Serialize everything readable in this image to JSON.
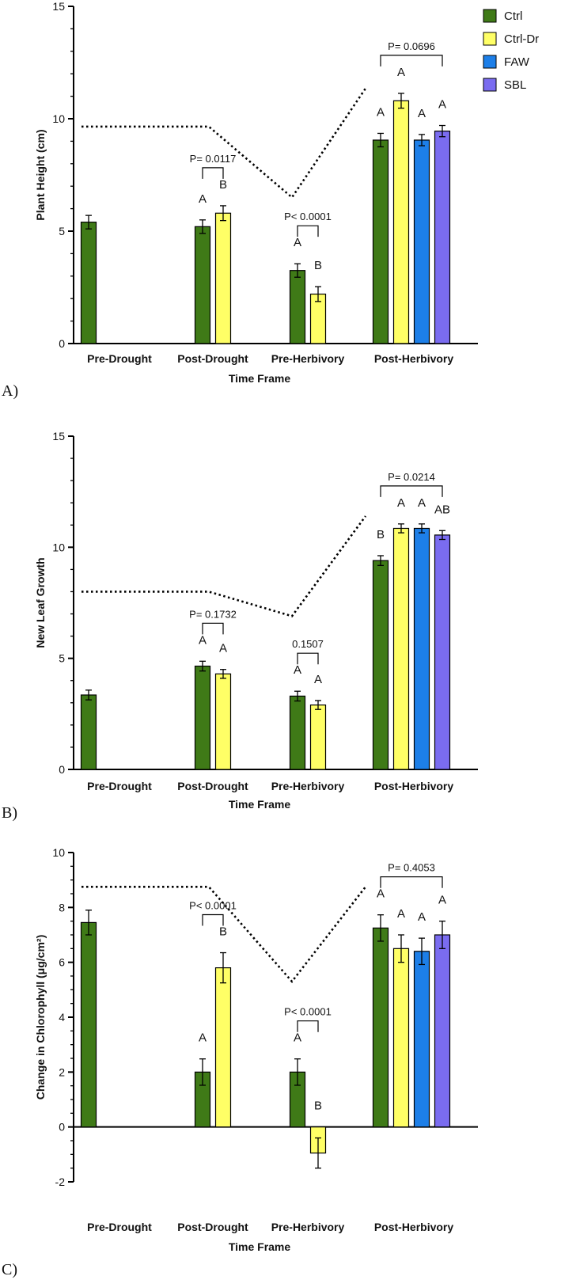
{
  "legend": [
    {
      "name": "Ctrl",
      "color": "#3f7a17"
    },
    {
      "name": "Ctrl-Dr",
      "color": "#ffff66"
    },
    {
      "name": "FAW",
      "color": "#1d7fe8"
    },
    {
      "name": "SBL",
      "color": "#7a6cf0"
    }
  ],
  "chart_data": [
    {
      "type": "bar",
      "panel_label": "A)",
      "ylabel": "Plant Height (cm)",
      "xlabel": "Time Frame",
      "ylim": [
        0,
        15
      ],
      "yticks": [
        0,
        5,
        10,
        15
      ],
      "categories": [
        "Pre-Drought",
        "Post-Drought",
        "Pre-Herbivory",
        "Post-Herbivory"
      ],
      "groups": [
        {
          "bars": [
            {
              "series": "Ctrl",
              "value": 5.4,
              "err": 0.3,
              "letter": ""
            }
          ]
        },
        {
          "bars": [
            {
              "series": "Ctrl",
              "value": 5.2,
              "err": 0.3,
              "letter": "A"
            },
            {
              "series": "Ctrl-Dr",
              "value": 5.8,
              "err": 0.33,
              "letter": "B"
            }
          ],
          "pvalue": "P= 0.0117"
        },
        {
          "bars": [
            {
              "series": "Ctrl",
              "value": 3.25,
              "err": 0.3,
              "letter": "A"
            },
            {
              "series": "Ctrl-Dr",
              "value": 2.2,
              "err": 0.33,
              "letter": "B"
            }
          ],
          "pvalue": "P< 0.0001"
        },
        {
          "bars": [
            {
              "series": "Ctrl",
              "value": 9.05,
              "err": 0.3,
              "letter": "A"
            },
            {
              "series": "Ctrl-Dr",
              "value": 10.8,
              "err": 0.33,
              "letter": "A"
            },
            {
              "series": "FAW",
              "value": 9.05,
              "err": 0.25,
              "letter": "A"
            },
            {
              "series": "SBL",
              "value": 9.45,
              "err": 0.25,
              "letter": "A"
            }
          ],
          "pvalue": "P= 0.0696"
        }
      ],
      "trend_line": [
        9.65,
        9.65,
        6.5,
        11.35
      ]
    },
    {
      "type": "bar",
      "panel_label": "B)",
      "ylabel": "New Leaf Growth",
      "xlabel": "Time Frame",
      "ylim": [
        0,
        15
      ],
      "yticks": [
        0,
        5,
        10,
        15
      ],
      "categories": [
        "Pre-Drought",
        "Post-Drought",
        "Pre-Herbivory",
        "Post-Herbivory"
      ],
      "groups": [
        {
          "bars": [
            {
              "series": "Ctrl",
              "value": 3.35,
              "err": 0.22,
              "letter": ""
            }
          ]
        },
        {
          "bars": [
            {
              "series": "Ctrl",
              "value": 4.65,
              "err": 0.22,
              "letter": "A"
            },
            {
              "series": "Ctrl-Dr",
              "value": 4.3,
              "err": 0.2,
              "letter": "A"
            }
          ],
          "pvalue": "P= 0.1732"
        },
        {
          "bars": [
            {
              "series": "Ctrl",
              "value": 3.3,
              "err": 0.22,
              "letter": "A"
            },
            {
              "series": "Ctrl-Dr",
              "value": 2.9,
              "err": 0.2,
              "letter": "A"
            }
          ],
          "pvalue": "0.1507"
        },
        {
          "bars": [
            {
              "series": "Ctrl",
              "value": 9.4,
              "err": 0.22,
              "letter": "B"
            },
            {
              "series": "Ctrl-Dr",
              "value": 10.85,
              "err": 0.2,
              "letter": "A"
            },
            {
              "series": "FAW",
              "value": 10.85,
              "err": 0.2,
              "letter": "A"
            },
            {
              "series": "SBL",
              "value": 10.55,
              "err": 0.2,
              "letter": "AB"
            }
          ],
          "pvalue": "P= 0.0214"
        }
      ],
      "trend_line": [
        8.0,
        8.0,
        6.9,
        11.4
      ]
    },
    {
      "type": "bar",
      "panel_label": "C)",
      "ylabel": "Change in Chlorophyll  (μg/cm²)",
      "xlabel": "Time Frame",
      "ylim": [
        -2,
        10
      ],
      "yticks": [
        -2,
        0,
        2,
        4,
        6,
        8,
        10
      ],
      "categories": [
        "Pre-Drought",
        "Post-Drought",
        "Pre-Herbivory",
        "Post-Herbivory"
      ],
      "groups": [
        {
          "bars": [
            {
              "series": "Ctrl",
              "value": 7.45,
              "err": 0.45,
              "letter": ""
            }
          ]
        },
        {
          "bars": [
            {
              "series": "Ctrl",
              "value": 2.0,
              "err": 0.48,
              "letter": "A"
            },
            {
              "series": "Ctrl-Dr",
              "value": 5.8,
              "err": 0.55,
              "letter": "B"
            }
          ],
          "pvalue": "P< 0.0001"
        },
        {
          "bars": [
            {
              "series": "Ctrl",
              "value": 2.0,
              "err": 0.48,
              "letter": "A"
            },
            {
              "series": "Ctrl-Dr",
              "value": -0.95,
              "err": 0.55,
              "letter": "B"
            }
          ],
          "pvalue": "P< 0.0001"
        },
        {
          "bars": [
            {
              "series": "Ctrl",
              "value": 7.25,
              "err": 0.48,
              "letter": "A"
            },
            {
              "series": "Ctrl-Dr",
              "value": 6.5,
              "err": 0.5,
              "letter": "A"
            },
            {
              "series": "FAW",
              "value": 6.4,
              "err": 0.48,
              "letter": "A"
            },
            {
              "series": "SBL",
              "value": 7.0,
              "err": 0.5,
              "letter": "A"
            }
          ],
          "pvalue": "P= 0.4053"
        }
      ],
      "trend_line": [
        8.75,
        8.75,
        5.3,
        8.75
      ]
    }
  ]
}
